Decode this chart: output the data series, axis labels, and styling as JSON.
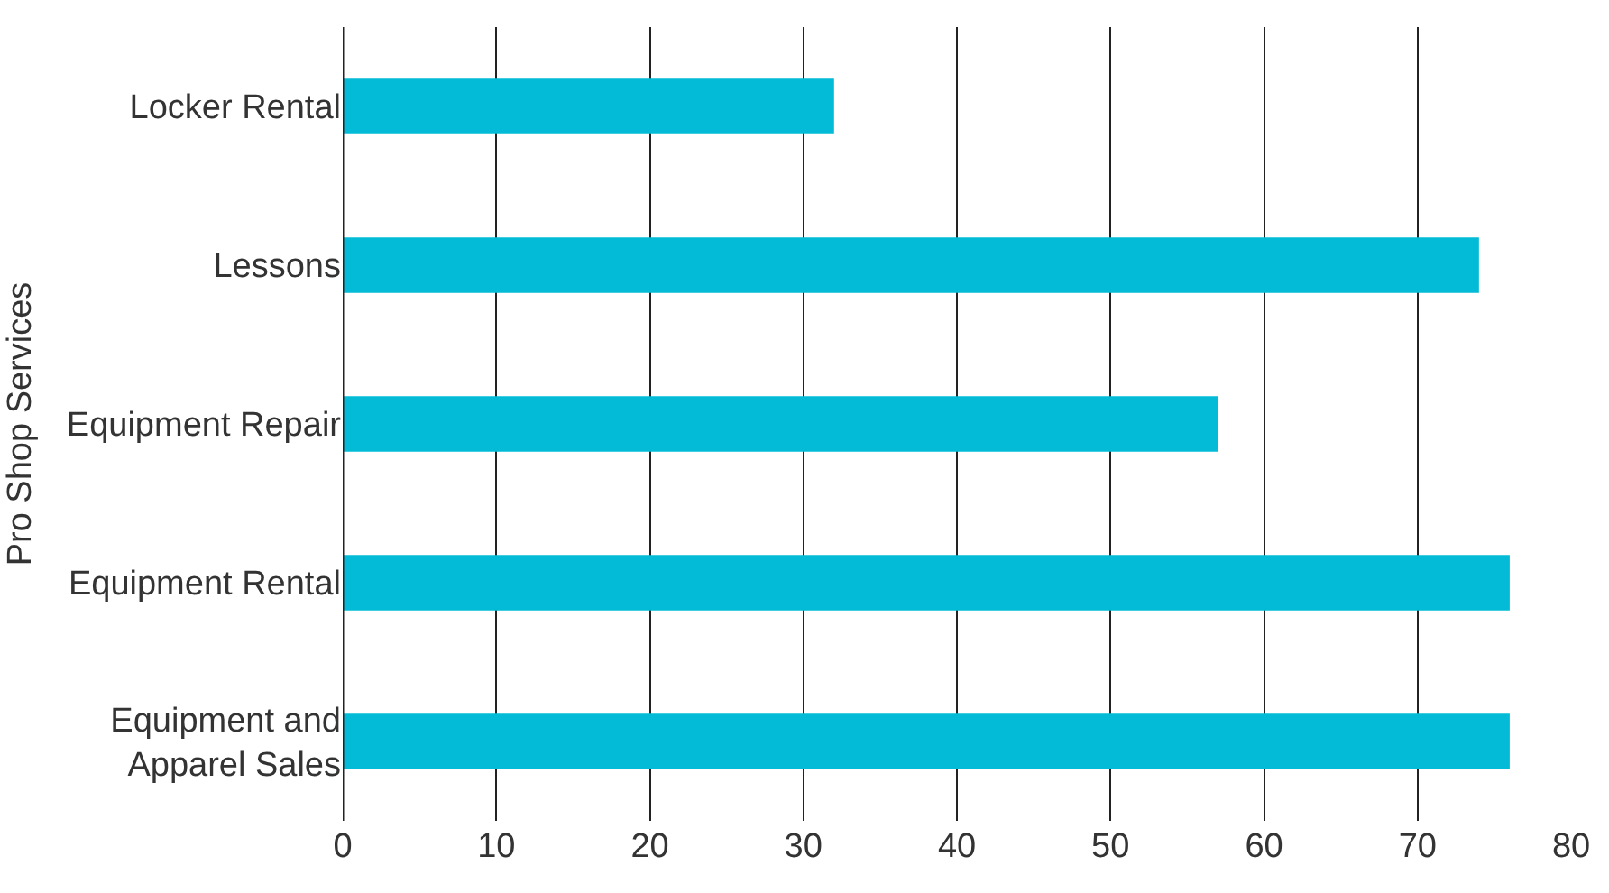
{
  "chart_data": {
    "type": "bar",
    "orientation": "horizontal",
    "ylabel": "Pro Shop Services",
    "categories": [
      "Locker Rental",
      "Lessons",
      "Equipment Repair",
      "Equipment Rental",
      "Equipment and\nApparel Sales"
    ],
    "values": [
      32,
      74,
      57,
      76,
      76
    ],
    "color": "#03bbd6",
    "xlim": [
      0,
      80
    ],
    "xticks": [
      0,
      10,
      20,
      30,
      40,
      50,
      60,
      70,
      80
    ],
    "grid": "x",
    "legend": false
  }
}
